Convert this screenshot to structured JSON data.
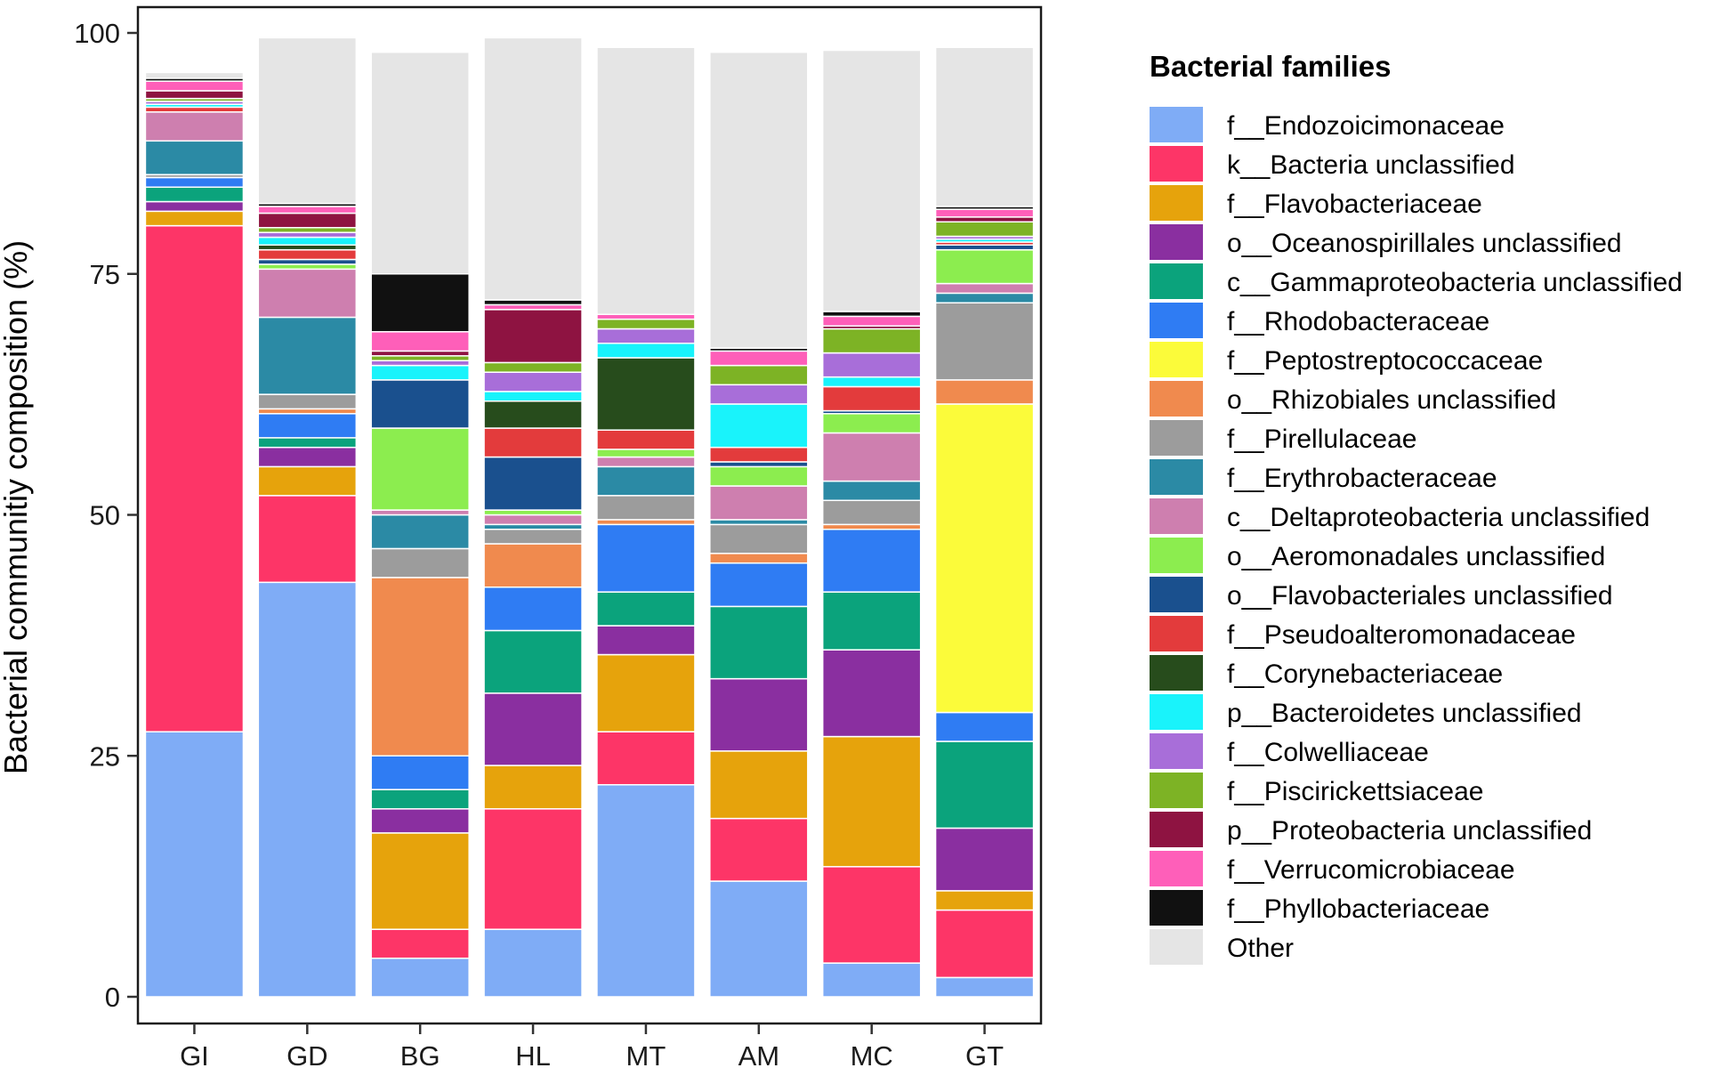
{
  "chart_data": {
    "type": "bar",
    "stacked": true,
    "title": "",
    "xlabel": "",
    "ylabel": "Bacterial communitiy composition (%)",
    "ylim": [
      0,
      100
    ],
    "yticks": [
      0,
      25,
      50,
      75,
      100
    ],
    "categories": [
      "GI",
      "GD",
      "BG",
      "HL",
      "MT",
      "AM",
      "MC",
      "GT"
    ],
    "legend": {
      "title": "Bacterial families",
      "position": "right"
    },
    "series": [
      {
        "name": "f__Endozoicimonaceae",
        "color": "#7facf6",
        "values": [
          27.5,
          43.0,
          4.0,
          7.0,
          22.0,
          12.0,
          3.5,
          2.0
        ]
      },
      {
        "name": "k__Bacteria unclassified",
        "color": "#fd3567",
        "values": [
          52.5,
          9.0,
          3.0,
          12.5,
          5.5,
          6.5,
          10.0,
          7.0
        ]
      },
      {
        "name": "f__Flavobacteriaceae",
        "color": "#e6a30c",
        "values": [
          1.5,
          3.0,
          10.0,
          4.5,
          8.0,
          7.0,
          13.5,
          2.0
        ]
      },
      {
        "name": "o__Oceanospirillales unclassified",
        "color": "#8a2fa0",
        "values": [
          1.0,
          2.0,
          2.5,
          7.5,
          3.0,
          7.5,
          9.0,
          6.5
        ]
      },
      {
        "name": "c__Gammaproteobacteria unclassified",
        "color": "#0ba37c",
        "values": [
          1.5,
          1.0,
          2.0,
          6.5,
          3.5,
          7.5,
          6.0,
          9.0
        ]
      },
      {
        "name": "f__Rhodobacteraceae",
        "color": "#2f7cf3",
        "values": [
          1.0,
          2.5,
          3.5,
          4.5,
          7.0,
          4.5,
          6.5,
          3.0
        ]
      },
      {
        "name": "f__Peptostreptococcaceae",
        "color": "#fbfb3a",
        "values": [
          0,
          0,
          0,
          0,
          0,
          0,
          0,
          32.0
        ]
      },
      {
        "name": "o__Rhizobiales unclassified",
        "color": "#f08a4e",
        "values": [
          0,
          0.5,
          18.5,
          4.5,
          0.5,
          1.0,
          0.5,
          2.5
        ]
      },
      {
        "name": "f__Pirellulaceae",
        "color": "#9c9c9c",
        "values": [
          0.3,
          1.5,
          3.0,
          1.5,
          2.5,
          3.0,
          2.5,
          8.0
        ]
      },
      {
        "name": "f__Erythrobacteraceae",
        "color": "#2b8aa5",
        "values": [
          3.5,
          8.0,
          3.5,
          0.5,
          3.0,
          0.5,
          2.0,
          1.0
        ]
      },
      {
        "name": "c__Deltaproteobacteria unclassified",
        "color": "#ce7faf",
        "values": [
          3.0,
          5.0,
          0.5,
          1.0,
          1.0,
          3.5,
          5.0,
          1.0
        ]
      },
      {
        "name": "o__Aeromonadales unclassified",
        "color": "#8ced4f",
        "values": [
          0,
          0.5,
          8.5,
          0.5,
          0.8,
          2.0,
          2.0,
          3.5
        ]
      },
      {
        "name": "o__Flavobacteriales unclassified",
        "color": "#1a508e",
        "values": [
          0,
          0.5,
          5.0,
          5.5,
          0,
          0.5,
          0.3,
          0.5
        ]
      },
      {
        "name": "f__Pseudoalteromonadaceae",
        "color": "#e33b3c",
        "values": [
          0.5,
          1.0,
          0,
          3.0,
          2.0,
          1.5,
          2.5,
          0.3
        ]
      },
      {
        "name": "f__Corynebacteriaceae",
        "color": "#274c1c",
        "values": [
          0,
          0.5,
          0,
          2.8,
          7.5,
          0,
          0,
          0
        ]
      },
      {
        "name": "p__Bacteroidetes unclassified",
        "color": "#19f3fb",
        "values": [
          0.3,
          0.8,
          1.5,
          1.0,
          1.5,
          4.5,
          1.0,
          0.3
        ]
      },
      {
        "name": "f__Colwelliaceae",
        "color": "#a86ed9",
        "values": [
          0.3,
          0.5,
          0.5,
          2.0,
          1.5,
          2.0,
          2.5,
          0.3
        ]
      },
      {
        "name": "f__Piscirickettsiaceae",
        "color": "#7db325",
        "values": [
          0.3,
          0.5,
          0.5,
          1.0,
          1.0,
          2.0,
          2.5,
          1.5
        ]
      },
      {
        "name": "p__Proteobacteria unclassified",
        "color": "#8e1341",
        "values": [
          0.8,
          1.5,
          0.5,
          5.5,
          0,
          0,
          0.3,
          0.5
        ]
      },
      {
        "name": "f__Verrucomicrobiaceae",
        "color": "#fe5fb9",
        "values": [
          1.0,
          0.7,
          2.0,
          0.5,
          0.5,
          1.5,
          1.0,
          0.8
        ]
      },
      {
        "name": "f__Phyllobacteriaceae",
        "color": "#111111",
        "values": [
          0.3,
          0.3,
          6.0,
          0.5,
          0,
          0.3,
          0.5,
          0.3
        ]
      },
      {
        "name": "Other",
        "color": "#e5e5e5",
        "values": [
          0.6,
          17.2,
          23.0,
          27.2,
          27.7,
          30.7,
          27.1,
          16.5
        ]
      }
    ]
  }
}
